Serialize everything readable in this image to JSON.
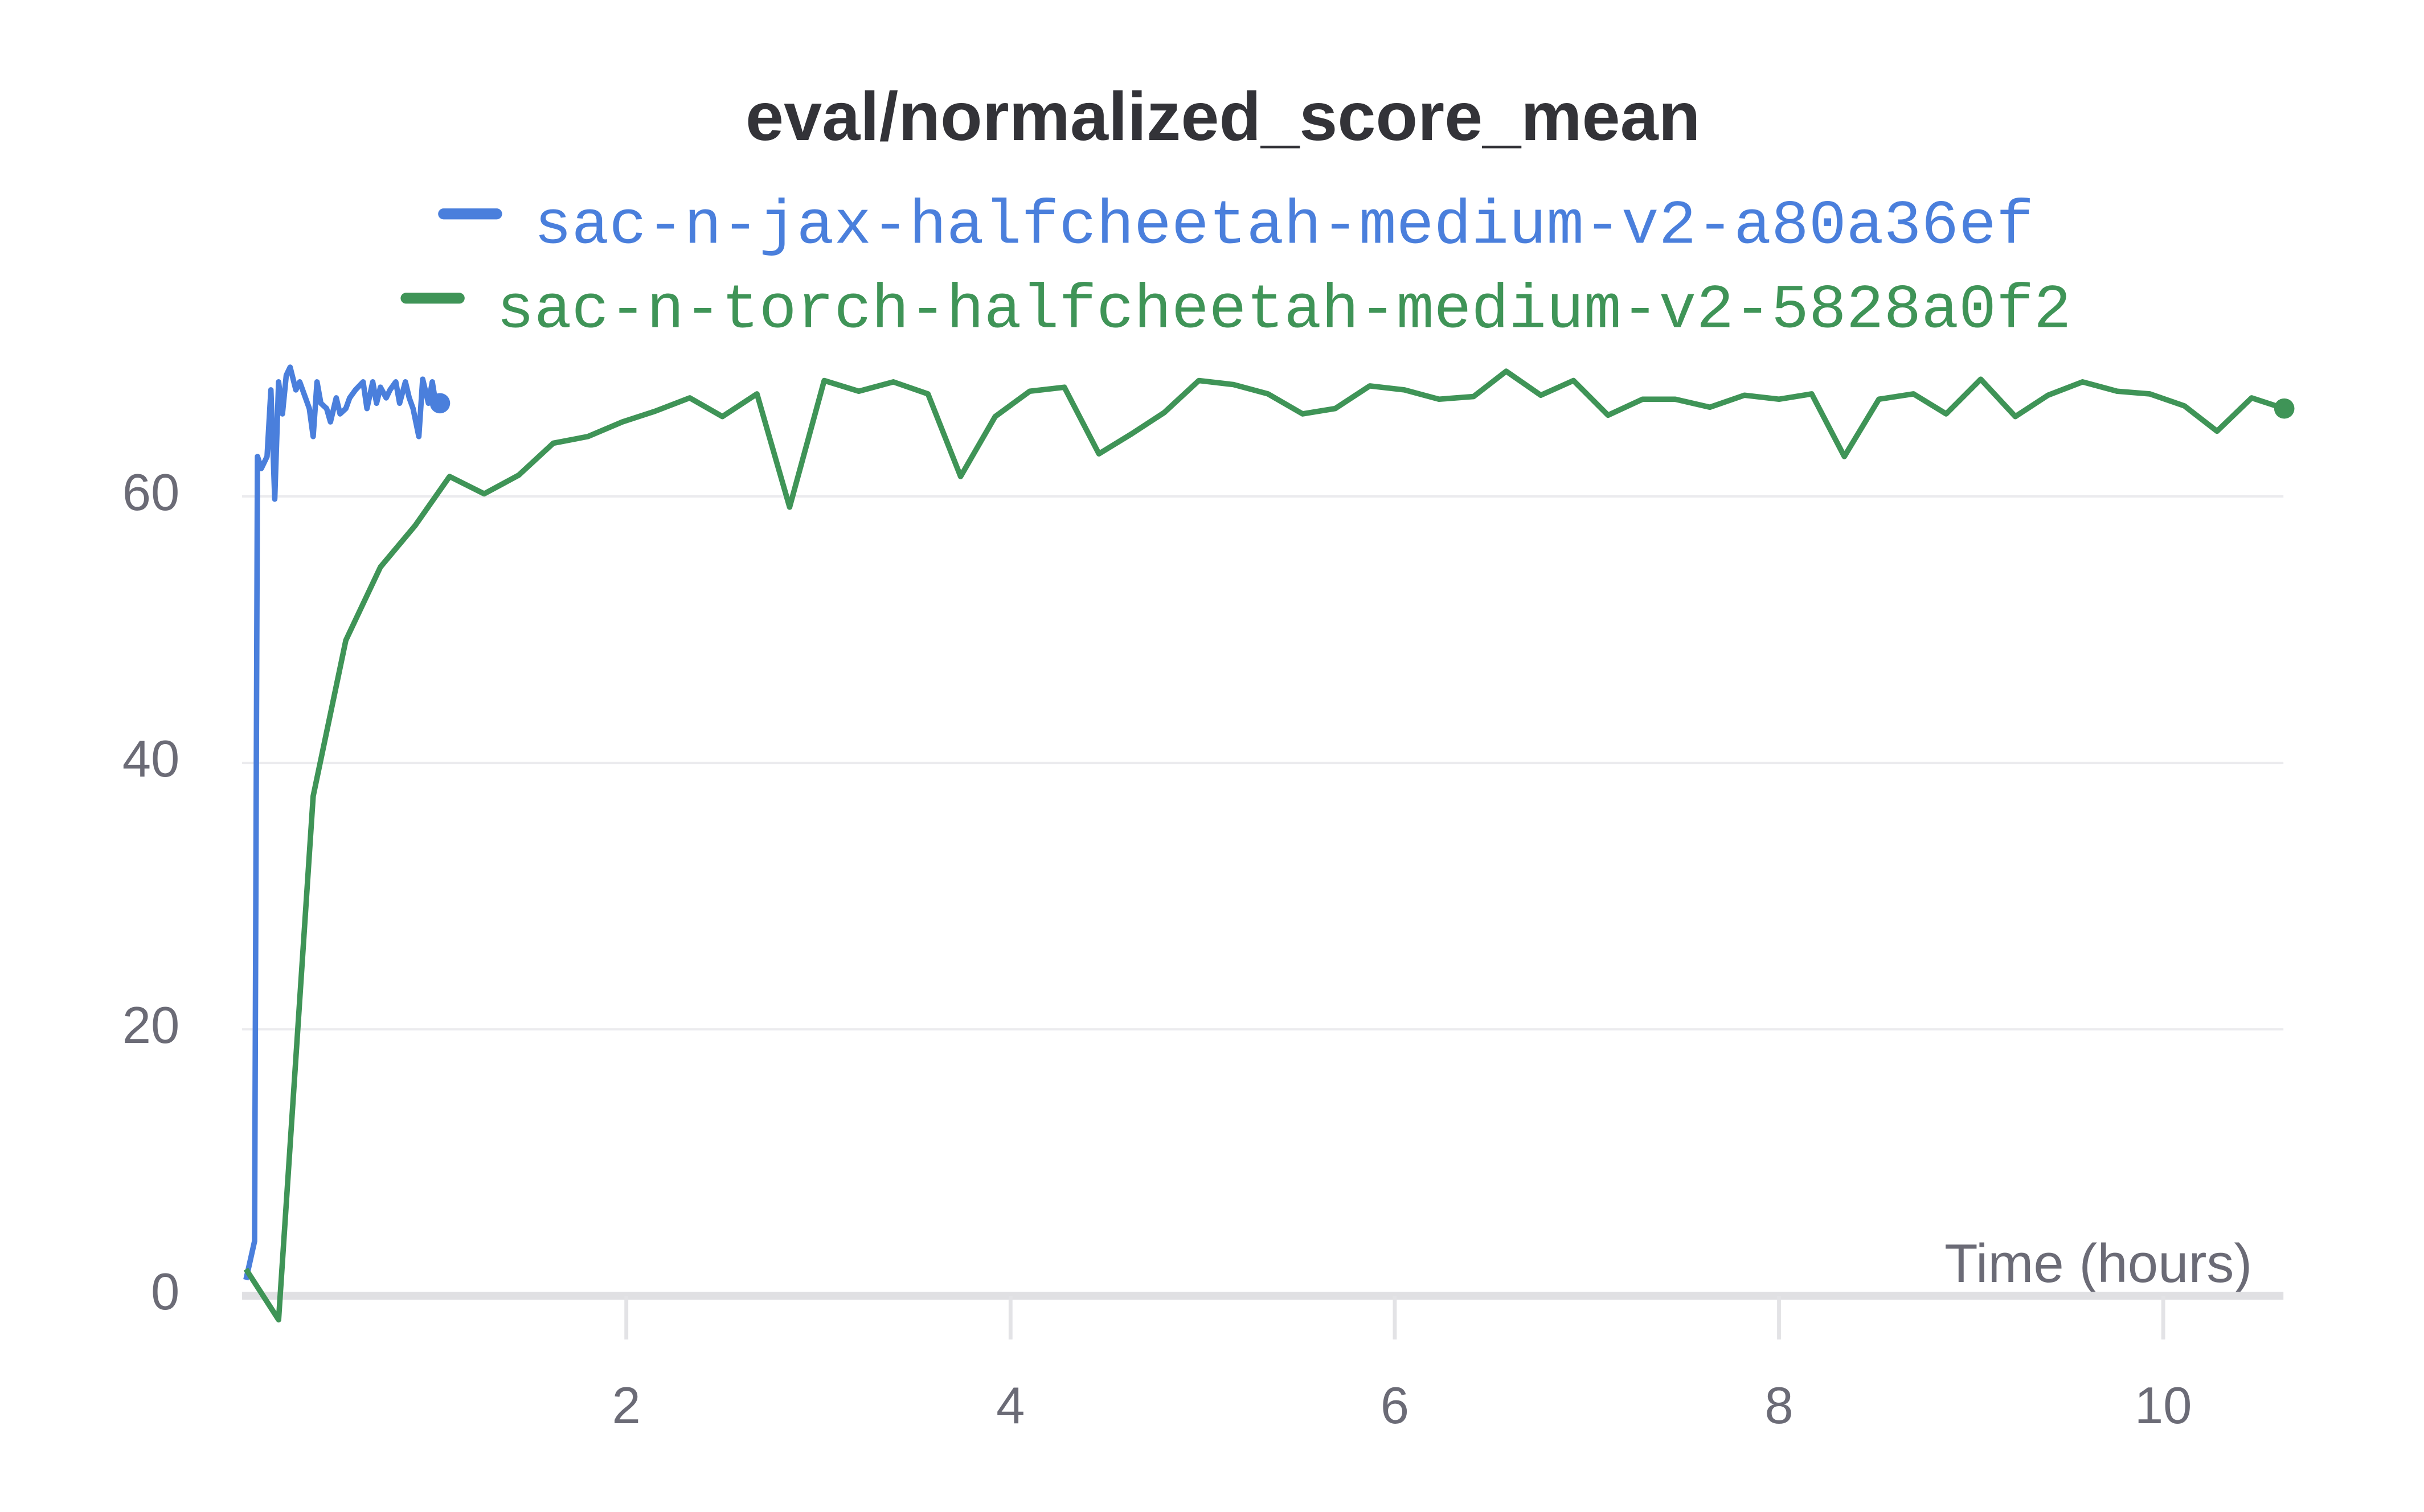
{
  "chart_data": {
    "type": "line",
    "title": "eval/normalized_score_mean",
    "x_label": "Time (hours)",
    "xlim": [
      0,
      10.65
    ],
    "xticks": [
      2,
      4,
      6,
      8,
      10
    ],
    "ylim": [
      -3,
      72
    ],
    "yticks": [
      0,
      20,
      40,
      60
    ],
    "grid": true,
    "series": [
      {
        "name": "sac-n-jax-halfcheetah-medium-v2-a80a36ef",
        "color": "#4a7fdc",
        "x": [
          0.02,
          0.065,
          0.08,
          0.1,
          0.13,
          0.15,
          0.17,
          0.19,
          0.21,
          0.23,
          0.25,
          0.28,
          0.3,
          0.33,
          0.35,
          0.37,
          0.39,
          0.41,
          0.44,
          0.46,
          0.49,
          0.51,
          0.54,
          0.56,
          0.59,
          0.63,
          0.65,
          0.68,
          0.7,
          0.72,
          0.75,
          0.77,
          0.8,
          0.82,
          0.85,
          0.87,
          0.89,
          0.92,
          0.94,
          0.97,
          0.99,
          1.01,
          1.03
        ],
        "values": [
          1.2,
          4.1,
          63,
          62.1,
          63,
          68,
          59.8,
          68.6,
          66.2,
          69.1,
          69.7,
          68,
          68.6,
          67.4,
          66.6,
          64.5,
          68.6,
          67,
          66.6,
          65.6,
          67.4,
          66.2,
          66.6,
          67.4,
          68,
          68.6,
          66.6,
          68.6,
          67,
          68.2,
          67.4,
          68,
          68.6,
          67,
          68.6,
          67.4,
          66.6,
          64.5,
          68.8,
          67,
          68.6,
          66.8,
          67
        ]
      },
      {
        "name": "sac-n-torch-halfcheetah-medium-v2-5828a0f2",
        "color": "#3f9457",
        "x": [
          0.02,
          0.19,
          0.37,
          0.54,
          0.72,
          0.9,
          1.08,
          1.26,
          1.44,
          1.62,
          1.8,
          1.98,
          2.15,
          2.33,
          2.5,
          2.68,
          2.85,
          3.03,
          3.21,
          3.39,
          3.57,
          3.74,
          3.92,
          4.1,
          4.28,
          4.46,
          4.63,
          4.8,
          4.98,
          5.16,
          5.34,
          5.52,
          5.69,
          5.87,
          6.05,
          6.23,
          6.41,
          6.58,
          6.76,
          6.93,
          7.11,
          7.29,
          7.46,
          7.64,
          7.82,
          8.0,
          8.17,
          8.34,
          8.52,
          8.7,
          8.87,
          9.05,
          9.23,
          9.4,
          9.58,
          9.76,
          9.93,
          10.11,
          10.28,
          10.46,
          10.63
        ],
        "values": [
          2,
          -1.8,
          37.5,
          49.2,
          54.7,
          57.8,
          61.5,
          60.2,
          61.6,
          64,
          64.5,
          65.6,
          66.4,
          67.4,
          66,
          67.7,
          59.2,
          68.7,
          67.9,
          68.6,
          67.7,
          61.5,
          66,
          67.9,
          68.2,
          63.2,
          64.7,
          66.3,
          68.7,
          68.4,
          67.7,
          66.2,
          66.6,
          68.3,
          68,
          67.3,
          67.5,
          69.4,
          67.6,
          68.7,
          66.1,
          67.3,
          67.3,
          66.7,
          67.6,
          67.3,
          67.7,
          63,
          67.3,
          67.7,
          66.2,
          68.8,
          66,
          67.6,
          68.6,
          67.9,
          67.7,
          66.8,
          64.9,
          67.4,
          66.6
        ]
      }
    ]
  }
}
